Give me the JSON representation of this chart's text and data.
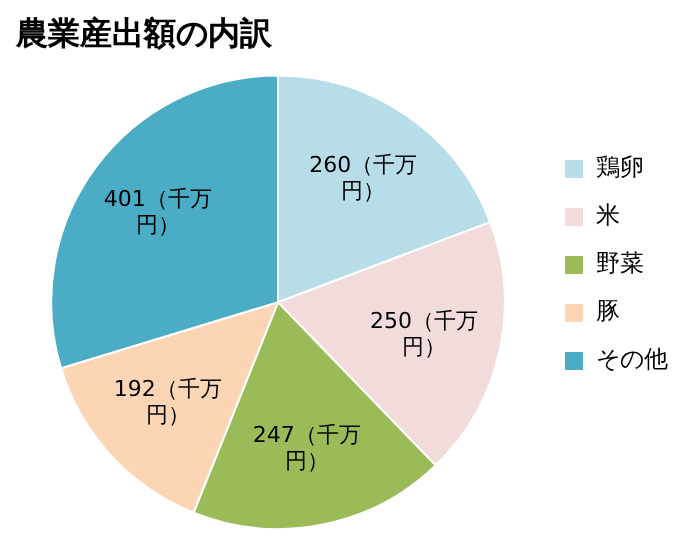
{
  "chart_data": {
    "type": "pie",
    "title": "農業産出額の内訳",
    "categories": [
      "鶏卵",
      "米",
      "野菜",
      "豚",
      "その他"
    ],
    "values": [
      260,
      250,
      247,
      192,
      401
    ],
    "colors": [
      "#b7dde8",
      "#f2dcdb",
      "#9bbb59",
      "#fcd5b5",
      "#4bacc6"
    ],
    "value_labels": [
      "260（千万円）",
      "250（千万円）",
      "247（千万円）",
      "192（千万円）",
      "401（千万円）"
    ],
    "legend": "right"
  }
}
